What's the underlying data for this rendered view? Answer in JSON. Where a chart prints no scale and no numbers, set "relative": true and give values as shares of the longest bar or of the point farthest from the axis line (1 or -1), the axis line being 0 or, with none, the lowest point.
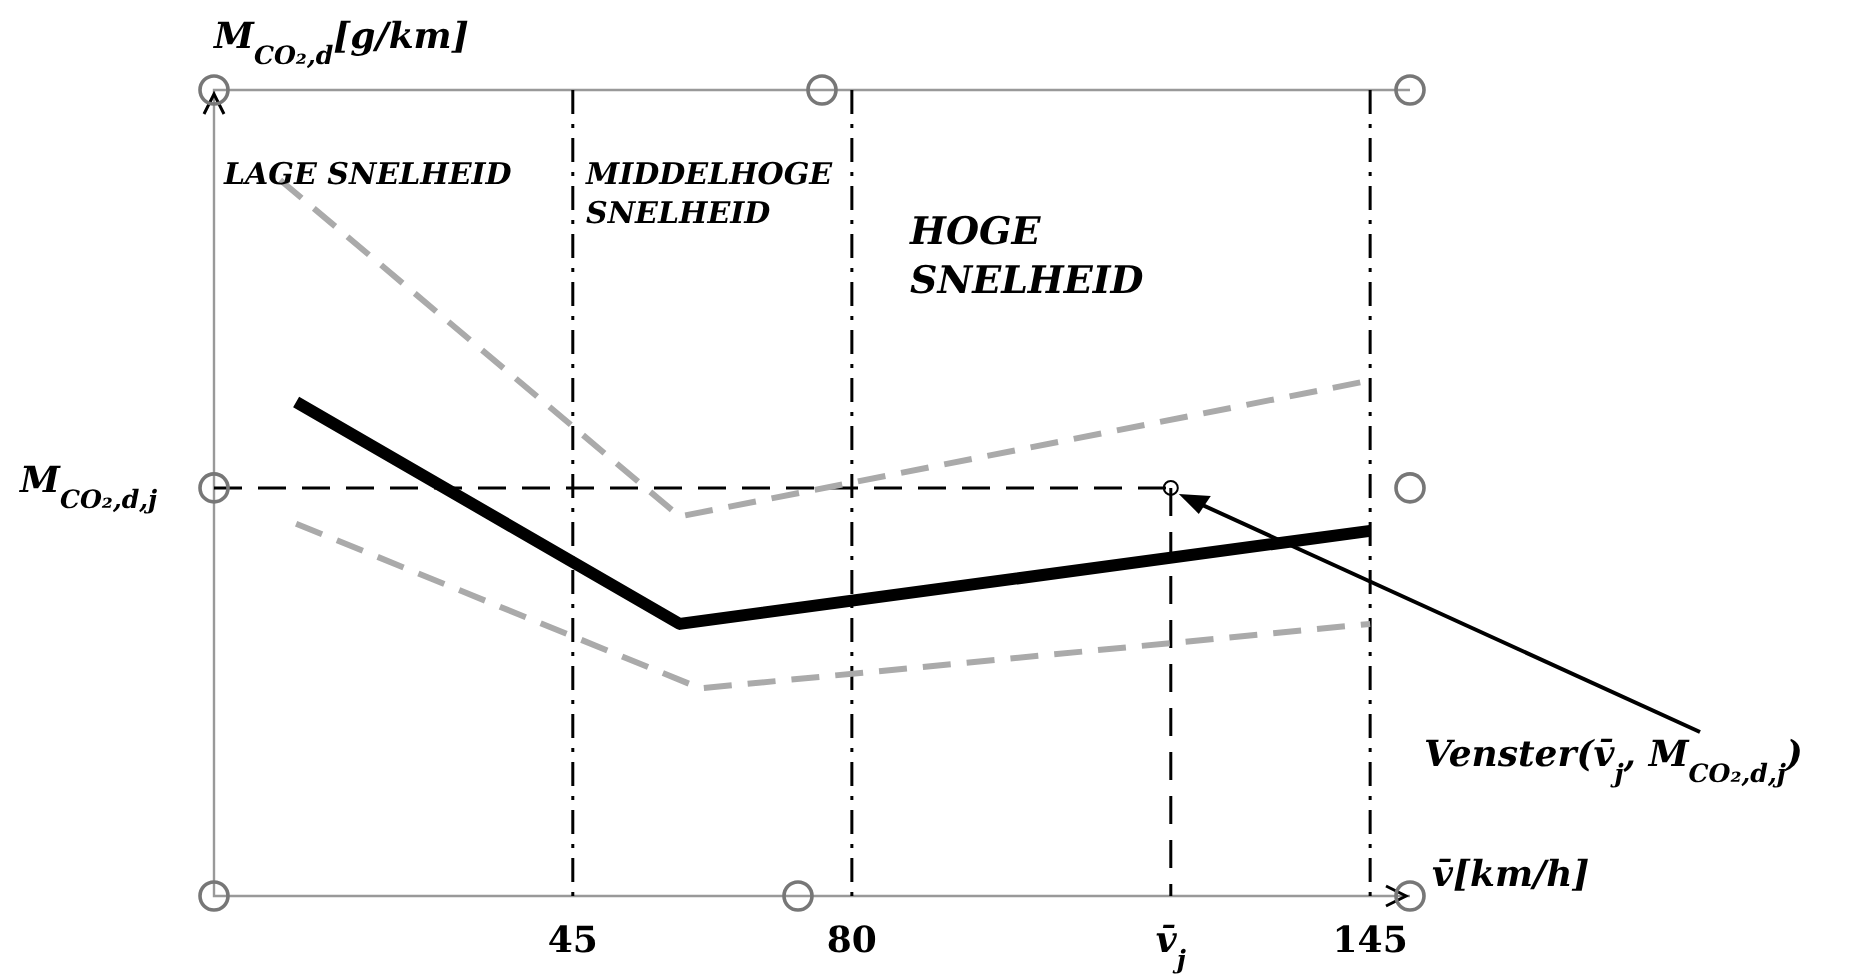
{
  "chart_data": {
    "type": "line",
    "relative": true,
    "ylabel": "M$_{CO₂,d}$[g/km]",
    "xlabel": "v̄[km/h]",
    "xlim": [
      0,
      150
    ],
    "xticks": [
      45,
      80,
      {
        "value": 120,
        "label": "v̄$_{j}$"
      },
      145
    ],
    "series": [
      {
        "color": "#aaaaaa",
        "line_style": "dashed",
        "x": [
          8.3,
          58.4,
          145
        ],
        "values": [
          1.0,
          0.53,
          0.72
        ]
      },
      {
        "color": "#000000",
        "line_style": "solid",
        "x": [
          10.3,
          58.4,
          145
        ],
        "values": [
          0.69,
          0.38,
          0.51
        ]
      },
      {
        "color": "#aaaaaa",
        "line_style": "dashed",
        "x": [
          10.3,
          61,
          145
        ],
        "values": [
          0.52,
          0.29,
          0.38
        ]
      }
    ],
    "ref_lines": [
      {
        "axis": "x",
        "value": 45,
        "line_style": "dashdot",
        "color": "#000000"
      },
      {
        "axis": "x",
        "value": 80,
        "line_style": "dashdot",
        "color": "#000000"
      },
      {
        "axis": "x",
        "value": 120,
        "line_style": "dashed",
        "color": "#000000"
      },
      {
        "axis": "x",
        "value": 145,
        "line_style": "dashdot",
        "color": "#000000"
      },
      {
        "axis": "y",
        "value": 0.57,
        "label": "M$_{CO₂,d,j}$",
        "line_style": "dashed",
        "color": "#000000"
      }
    ],
    "annotations": [
      "LAGE SNELHEID",
      "MIDDELHOGE\nSNELHEID",
      "HOGE\nSNELHEID",
      "Venster(v̄$_{j}$, M$_{CO₂,d,j}$)"
    ]
  }
}
